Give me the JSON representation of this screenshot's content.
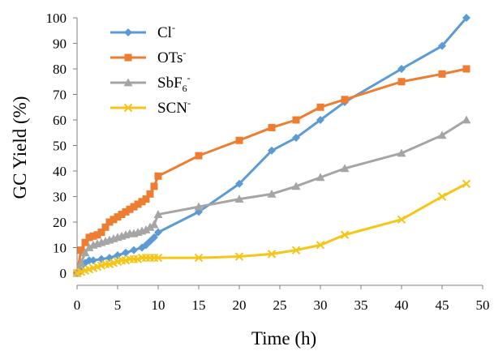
{
  "chart_data": {
    "type": "line",
    "title": "",
    "xlabel": "Time (h)",
    "ylabel": "GC Yield (%)",
    "xlim": [
      0,
      50
    ],
    "ylim": [
      0,
      100
    ],
    "xticks": [
      "0",
      "5",
      "10",
      "15",
      "20",
      "25",
      "30",
      "35",
      "40",
      "45",
      "50"
    ],
    "yticks": [
      "0",
      "10",
      "20",
      "30",
      "40",
      "50",
      "60",
      "70",
      "80",
      "90",
      "100"
    ],
    "grid": false,
    "legend_position": "top-left",
    "series": [
      {
        "name": "Cl",
        "name_sup": "-",
        "name_sub": "",
        "color": "#5B9BD5",
        "marker": "diamond",
        "x": [
          0,
          0.5,
          1,
          1.5,
          2,
          3,
          4,
          5,
          6,
          7,
          8,
          8.5,
          9,
          9.5,
          10,
          15,
          20,
          24,
          27,
          30,
          33,
          40,
          45,
          48
        ],
        "y": [
          0,
          1,
          4,
          5,
          5,
          5.5,
          6,
          7,
          8,
          9,
          10,
          11,
          12.5,
          14,
          16,
          24,
          35,
          48,
          53,
          60,
          67,
          80,
          89,
          100
        ]
      },
      {
        "name": "OTs",
        "name_sup": "-",
        "name_sub": "",
        "color": "#ED7D31",
        "marker": "square",
        "x": [
          0,
          0.5,
          1,
          1.5,
          2,
          2.5,
          3,
          3.5,
          4,
          4.5,
          5,
          5.5,
          6,
          6.5,
          7,
          7.5,
          8,
          8.5,
          9,
          9.5,
          10,
          15,
          20,
          24,
          27,
          30,
          33,
          40,
          45,
          48
        ],
        "y": [
          0,
          9,
          12,
          14,
          14.5,
          15,
          16,
          18,
          20,
          21,
          22,
          23,
          24,
          25,
          26,
          27,
          28,
          29,
          31,
          34,
          38,
          46,
          52,
          57,
          60,
          65,
          68,
          75,
          78,
          80
        ]
      },
      {
        "name": "SbF",
        "name_sup": "-",
        "name_sub": "6",
        "color": "#A5A5A5",
        "marker": "triangle",
        "x": [
          0,
          0.5,
          1,
          1.5,
          2,
          2.5,
          3,
          3.5,
          4,
          4.5,
          5,
          5.5,
          6,
          6.5,
          7,
          7.5,
          8,
          8.5,
          9,
          9.5,
          10,
          15,
          20,
          24,
          27,
          30,
          33,
          40,
          45,
          48
        ],
        "y": [
          0,
          4,
          8,
          10,
          11,
          11.5,
          12,
          12.5,
          13,
          13.5,
          14,
          14.5,
          15,
          15.5,
          15.5,
          16,
          16.5,
          17,
          18,
          19,
          23,
          26,
          29,
          31,
          34,
          37.5,
          41,
          47,
          54,
          60
        ]
      },
      {
        "name": "SCN",
        "name_sup": "-",
        "name_sub": "",
        "color": "#F5C518",
        "marker": "x",
        "x": [
          0,
          0.5,
          1,
          1.5,
          2,
          2.5,
          3,
          3.5,
          4,
          4.5,
          5,
          5.5,
          6,
          6.5,
          7,
          7.5,
          8,
          8.5,
          9,
          9.5,
          10,
          15,
          20,
          24,
          27,
          30,
          33,
          40,
          45,
          48
        ],
        "y": [
          0,
          0.5,
          1,
          1.5,
          2,
          2.5,
          3,
          3.5,
          3.5,
          4,
          4.5,
          5,
          5,
          5.5,
          5.5,
          5.5,
          6,
          6,
          6,
          6,
          6,
          6,
          6.5,
          7.5,
          9,
          11,
          15,
          21,
          30,
          35
        ]
      }
    ]
  }
}
